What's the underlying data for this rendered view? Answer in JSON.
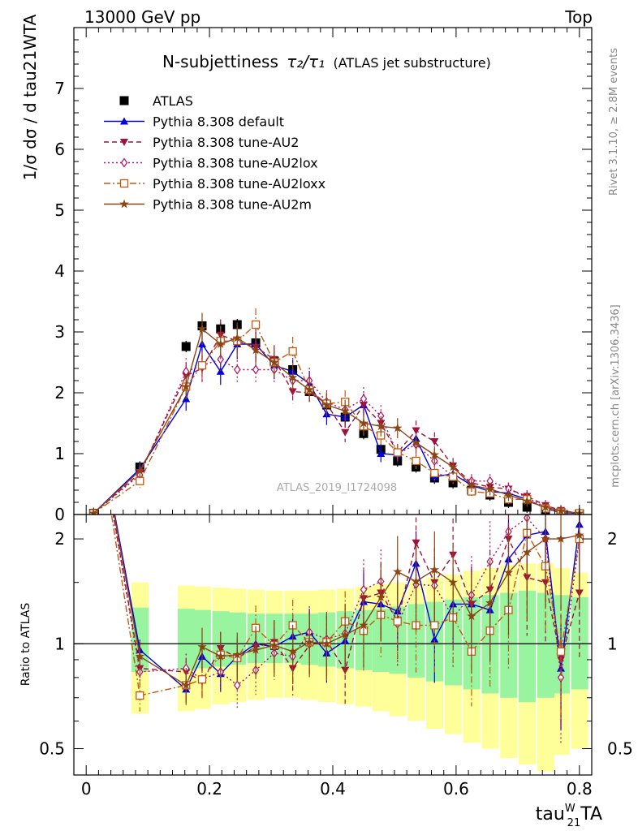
{
  "header": {
    "left": "13000 GeV pp",
    "right": "Top",
    "rivet": "Rivet 3.1.10, ≥ 2.8M events",
    "mcplots": "mcplots.cern.ch [arXiv:1306.3436]",
    "analysis": "ATLAS_2019_I1724098"
  },
  "titles": {
    "main": "N-subjettiness",
    "tau_formula": "τ₂/τ₁",
    "main_suffix": "(ATLAS jet substructure)",
    "ylabel_main_prefix": "d",
    "ylabel_main": "1/σ dσ / d tau21WTA",
    "ylabel_ratio": "Ratio to ATLAS",
    "xlabel": "tau",
    "xlabel_sup": "W",
    "xlabel_sub": "21",
    "xlabel_suffix": "TA"
  },
  "chart_data": [
    {
      "type": "line",
      "panel": "main",
      "x": [
        0.012,
        0.087,
        0.162,
        0.188,
        0.218,
        0.245,
        0.275,
        0.305,
        0.335,
        0.362,
        0.39,
        0.42,
        0.45,
        0.478,
        0.505,
        0.535,
        0.565,
        0.595,
        0.625,
        0.655,
        0.685,
        0.715,
        0.745,
        0.77,
        0.8
      ],
      "xlim": [
        -0.02,
        0.82
      ],
      "ylim": [
        0,
        8
      ],
      "xticks": [
        0,
        0.2,
        0.4,
        0.6,
        0.8
      ],
      "yticks": [
        0,
        1,
        2,
        3,
        4,
        5,
        6,
        7
      ],
      "legend_position": "top-left",
      "series": [
        {
          "name": "ATLAS",
          "style": "data",
          "color": "#000000",
          "values": [
            0.02,
            0.78,
            2.76,
            3.1,
            3.05,
            3.12,
            2.82,
            2.52,
            2.38,
            2.02,
            1.8,
            1.6,
            1.33,
            1.07,
            0.88,
            0.78,
            0.6,
            0.52,
            0.4,
            0.32,
            0.2,
            0.12,
            0.06,
            0.03,
            0.01
          ]
        },
        {
          "name": "Pythia 8.308 default",
          "style": "solid",
          "color": "#0000dd",
          "marker": "triangle-up",
          "values": [
            0.02,
            0.75,
            1.9,
            2.8,
            2.35,
            2.8,
            2.8,
            2.45,
            2.35,
            2.15,
            1.65,
            1.6,
            1.8,
            1.0,
            0.98,
            1.25,
            0.62,
            0.67,
            0.48,
            0.38,
            0.35,
            0.25,
            0.1,
            0.03,
            0.02
          ]
        },
        {
          "name": "Pythia 8.308 tune-AU2",
          "style": "dashed",
          "color": "#a0103a",
          "marker": "triangle-down",
          "values": [
            0.02,
            0.68,
            2.28,
            2.4,
            2.95,
            2.85,
            2.75,
            2.55,
            2.02,
            2.0,
            1.82,
            1.35,
            1.8,
            1.5,
            1.02,
            1.38,
            1.2,
            0.8,
            0.52,
            0.45,
            0.42,
            0.3,
            0.15,
            0.07,
            0.02
          ]
        },
        {
          "name": "Pythia 8.308 tune-AU2lox",
          "style": "dotted",
          "color": "#b01060",
          "marker": "diamond",
          "values": [
            0.02,
            0.65,
            2.35,
            2.45,
            2.55,
            2.38,
            2.38,
            2.38,
            2.2,
            2.2,
            1.85,
            1.72,
            1.9,
            1.62,
            1.0,
            1.15,
            0.88,
            0.62,
            0.55,
            0.55,
            0.42,
            0.28,
            0.12,
            0.06,
            0.02
          ]
        },
        {
          "name": "Pythia 8.308 tune-AU2loxx",
          "style": "dashdot",
          "color": "#c05a10",
          "marker": "square-open",
          "values": [
            0.02,
            0.55,
            2.1,
            2.45,
            2.85,
            2.85,
            3.12,
            2.5,
            2.68,
            2.05,
            1.82,
            1.85,
            1.45,
            1.3,
            1.02,
            0.88,
            0.68,
            0.62,
            0.38,
            0.35,
            0.25,
            0.25,
            0.1,
            0.04,
            0.02
          ]
        },
        {
          "name": "Pythia 8.308 tune-AU2m",
          "style": "solid",
          "color": "#8b4513",
          "marker": "star",
          "values": [
            0.02,
            0.72,
            2.1,
            3.05,
            2.8,
            2.9,
            2.7,
            2.5,
            2.25,
            2.05,
            1.8,
            1.7,
            1.5,
            1.45,
            1.42,
            1.18,
            0.98,
            0.78,
            0.48,
            0.42,
            0.32,
            0.22,
            0.12,
            0.06,
            0.02
          ]
        }
      ]
    },
    {
      "type": "line",
      "panel": "ratio",
      "ylabel": "Ratio to ATLAS",
      "x": [
        0.087,
        0.162,
        0.188,
        0.218,
        0.245,
        0.275,
        0.305,
        0.335,
        0.362,
        0.39,
        0.42,
        0.45,
        0.478,
        0.505,
        0.535,
        0.565,
        0.595,
        0.625,
        0.655,
        0.685,
        0.715,
        0.745,
        0.77,
        0.8
      ],
      "xlim": [
        -0.02,
        0.82
      ],
      "ylim": [
        0.42,
        2.35
      ],
      "ylog": true,
      "yticks": [
        0.5,
        1,
        2
      ],
      "band_outer": [
        [
          0.087,
          0.63,
          1.5
        ],
        [
          0.162,
          0.64,
          1.47
        ],
        [
          0.188,
          0.65,
          1.46
        ],
        [
          0.218,
          0.67,
          1.45
        ],
        [
          0.245,
          0.68,
          1.44
        ],
        [
          0.275,
          0.69,
          1.43
        ],
        [
          0.305,
          0.7,
          1.42
        ],
        [
          0.335,
          0.7,
          1.42
        ],
        [
          0.362,
          0.69,
          1.42
        ],
        [
          0.39,
          0.68,
          1.43
        ],
        [
          0.42,
          0.67,
          1.44
        ],
        [
          0.45,
          0.66,
          1.46
        ],
        [
          0.478,
          0.64,
          1.48
        ],
        [
          0.505,
          0.62,
          1.5
        ],
        [
          0.535,
          0.6,
          1.52
        ],
        [
          0.565,
          0.57,
          1.55
        ],
        [
          0.595,
          0.55,
          1.58
        ],
        [
          0.625,
          0.52,
          1.62
        ],
        [
          0.655,
          0.5,
          1.65
        ],
        [
          0.685,
          0.47,
          1.68
        ],
        [
          0.715,
          0.45,
          1.7
        ],
        [
          0.745,
          0.43,
          1.7
        ],
        [
          0.77,
          0.48,
          1.65
        ],
        [
          0.8,
          0.5,
          1.6
        ]
      ],
      "band_inner": [
        [
          0.087,
          0.83,
          1.27
        ],
        [
          0.162,
          0.84,
          1.26
        ],
        [
          0.188,
          0.85,
          1.25
        ],
        [
          0.218,
          0.86,
          1.24
        ],
        [
          0.245,
          0.87,
          1.23
        ],
        [
          0.275,
          0.88,
          1.22
        ],
        [
          0.305,
          0.88,
          1.22
        ],
        [
          0.335,
          0.88,
          1.22
        ],
        [
          0.362,
          0.87,
          1.22
        ],
        [
          0.39,
          0.86,
          1.23
        ],
        [
          0.42,
          0.85,
          1.24
        ],
        [
          0.45,
          0.84,
          1.25
        ],
        [
          0.478,
          0.83,
          1.26
        ],
        [
          0.505,
          0.82,
          1.28
        ],
        [
          0.535,
          0.8,
          1.3
        ],
        [
          0.565,
          0.78,
          1.32
        ],
        [
          0.595,
          0.76,
          1.34
        ],
        [
          0.625,
          0.74,
          1.36
        ],
        [
          0.655,
          0.72,
          1.38
        ],
        [
          0.685,
          0.7,
          1.4
        ],
        [
          0.715,
          0.68,
          1.42
        ],
        [
          0.745,
          0.7,
          1.4
        ],
        [
          0.77,
          0.72,
          1.38
        ],
        [
          0.8,
          0.74,
          1.36
        ]
      ],
      "series": [
        {
          "name": "Pythia 8.308 default",
          "color": "#0000dd",
          "style": "solid",
          "values": [
            0.96,
            0.74,
            0.92,
            0.82,
            0.92,
            1.0,
            0.98,
            1.05,
            1.08,
            0.94,
            1.02,
            1.32,
            1.3,
            1.24,
            1.7,
            1.03,
            1.3,
            1.3,
            1.25,
            1.75,
            2.05,
            2.1,
            0.85,
            2.2
          ]
        },
        {
          "name": "Pythia 8.308 tune-AU2",
          "color": "#a0103a",
          "style": "dashed",
          "values": [
            0.85,
            0.83,
            0.78,
            0.97,
            0.91,
            0.98,
            1.01,
            0.85,
            0.99,
            1.02,
            0.84,
            1.35,
            1.4,
            1.16,
            1.95,
            1.5,
            1.8,
            1.3,
            1.43,
            2.0,
            1.55,
            1.5,
            0.9,
            1.4
          ]
        },
        {
          "name": "Pythia 8.308 tune-AU2lox",
          "color": "#b01060",
          "style": "dotted",
          "values": [
            0.83,
            0.85,
            0.79,
            0.83,
            0.76,
            0.84,
            0.94,
            0.92,
            1.08,
            1.03,
            1.07,
            1.43,
            1.51,
            1.14,
            1.48,
            1.47,
            1.19,
            1.38,
            1.72,
            2.1,
            2.3,
            2.0,
            0.8,
            2.0
          ]
        },
        {
          "name": "Pythia 8.308 tune-AU2loxx",
          "color": "#c05a10",
          "style": "dashdot",
          "values": [
            0.71,
            0.76,
            0.79,
            0.93,
            0.91,
            1.11,
            0.99,
            1.13,
            1.01,
            1.01,
            1.16,
            1.09,
            1.21,
            1.16,
            1.13,
            1.13,
            1.19,
            0.95,
            1.09,
            1.25,
            2.08,
            1.67,
            0.95,
            2.0
          ]
        },
        {
          "name": "Pythia 8.308 tune-AU2m",
          "color": "#8b4513",
          "style": "solid",
          "values": [
            0.92,
            0.76,
            0.98,
            0.92,
            0.93,
            0.96,
            0.99,
            0.95,
            1.01,
            1.0,
            1.06,
            1.13,
            1.36,
            1.61,
            1.51,
            1.63,
            1.5,
            1.2,
            1.31,
            1.6,
            1.83,
            2.0,
            2.0,
            2.05
          ]
        }
      ]
    }
  ]
}
